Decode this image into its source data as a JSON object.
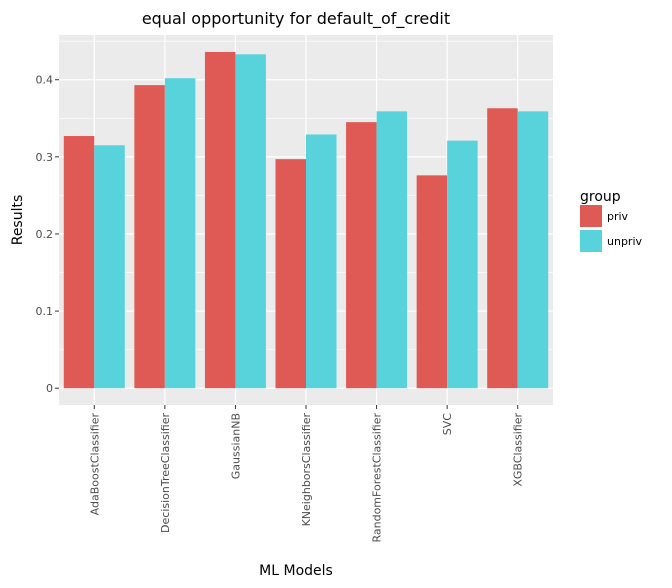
{
  "chart_data": {
    "type": "bar",
    "title": "equal opportunity for default_of_credit",
    "xlabel": "ML Models",
    "ylabel": "Results",
    "categories": [
      "AdaBoostClassifier",
      "DecisionTreeClassifier",
      "GaussianNB",
      "KNeighborsClassifier",
      "RandomForestClassifier",
      "SVC",
      "XGBClassifier"
    ],
    "series": [
      {
        "name": "priv",
        "color": "#e05a55",
        "values": [
          0.327,
          0.393,
          0.436,
          0.297,
          0.345,
          0.276,
          0.363
        ]
      },
      {
        "name": "unpriv",
        "color": "#59d3db",
        "values": [
          0.315,
          0.402,
          0.433,
          0.329,
          0.359,
          0.321,
          0.359
        ]
      }
    ],
    "ylim": [
      -0.0218,
      0.458
    ],
    "yticks": [
      0,
      0.1,
      0.2,
      0.3,
      0.4
    ],
    "ytick_labels": [
      "0",
      "0.1",
      "0.2",
      "0.3",
      "0.4"
    ],
    "grid": true,
    "legend": {
      "title": "group",
      "position": "right"
    }
  }
}
